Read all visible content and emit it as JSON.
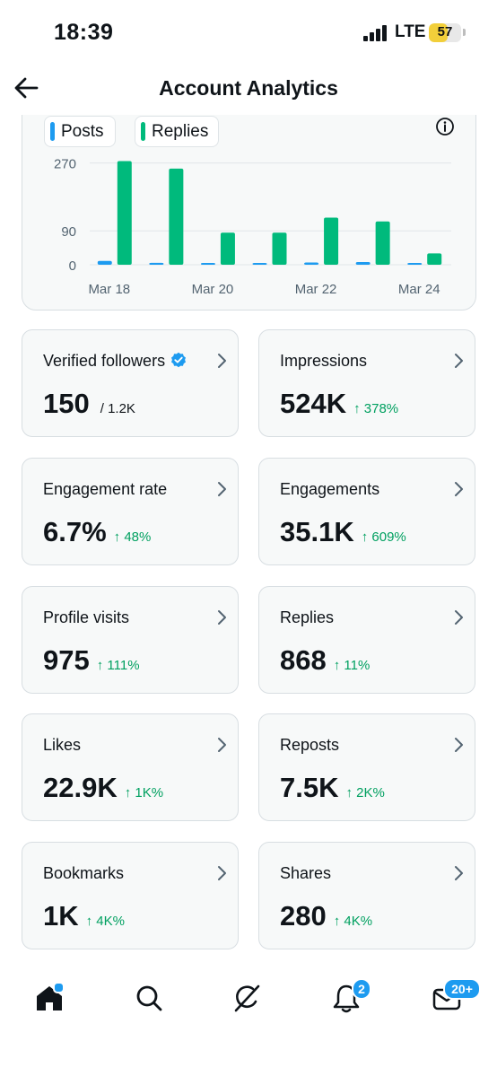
{
  "status_bar": {
    "time": "18:39",
    "network": "LTE",
    "battery_level": "57"
  },
  "header": {
    "title": "Account Analytics"
  },
  "chart_data": {
    "type": "bar",
    "legend": [
      {
        "name": "Posts",
        "color": "#1d9bf0"
      },
      {
        "name": "Replies",
        "color": "#00ba7c"
      }
    ],
    "categories": [
      "Mar 18",
      "Mar 19",
      "Mar 20",
      "Mar 21",
      "Mar 22",
      "Mar 23",
      "Mar 24"
    ],
    "x_tick_labels": [
      "Mar 18",
      "Mar 20",
      "Mar 22",
      "Mar 24"
    ],
    "y_ticks": [
      0,
      90,
      270
    ],
    "ylim": [
      0,
      300
    ],
    "series": [
      {
        "name": "Posts",
        "color": "#1d9bf0",
        "values": [
          10,
          5,
          3,
          3,
          6,
          7,
          3
        ]
      },
      {
        "name": "Replies",
        "color": "#00ba7c",
        "values": [
          275,
          255,
          85,
          85,
          125,
          115,
          30
        ]
      }
    ],
    "grid": true,
    "legend_position": "top-left"
  },
  "metrics": [
    {
      "label": "Verified followers",
      "value": "150",
      "sub": "/ 1.2K",
      "change": "",
      "verified": true
    },
    {
      "label": "Impressions",
      "value": "524K",
      "sub": "",
      "change": "↑ 378%"
    },
    {
      "label": "Engagement rate",
      "value": "6.7%",
      "sub": "",
      "change": "↑ 48%"
    },
    {
      "label": "Engagements",
      "value": "35.1K",
      "sub": "",
      "change": "↑ 609%"
    },
    {
      "label": "Profile visits",
      "value": "975",
      "sub": "",
      "change": "↑ 111%"
    },
    {
      "label": "Replies",
      "value": "868",
      "sub": "",
      "change": "↑ 11%"
    },
    {
      "label": "Likes",
      "value": "22.9K",
      "sub": "",
      "change": "↑ 1K%"
    },
    {
      "label": "Reposts",
      "value": "7.5K",
      "sub": "",
      "change": "↑ 2K%"
    },
    {
      "label": "Bookmarks",
      "value": "1K",
      "sub": "",
      "change": "↑ 4K%"
    },
    {
      "label": "Shares",
      "value": "280",
      "sub": "",
      "change": "↑ 4K%"
    }
  ],
  "tabs": [
    {
      "icon": "home-icon"
    },
    {
      "icon": "search-icon"
    },
    {
      "icon": "grok-icon"
    },
    {
      "icon": "bell-icon",
      "badge": "2"
    },
    {
      "icon": "mail-icon",
      "badge": "20+"
    }
  ],
  "colors": {
    "accent": "#1d9bf0",
    "positive": "#00a060",
    "replies": "#00ba7c"
  }
}
